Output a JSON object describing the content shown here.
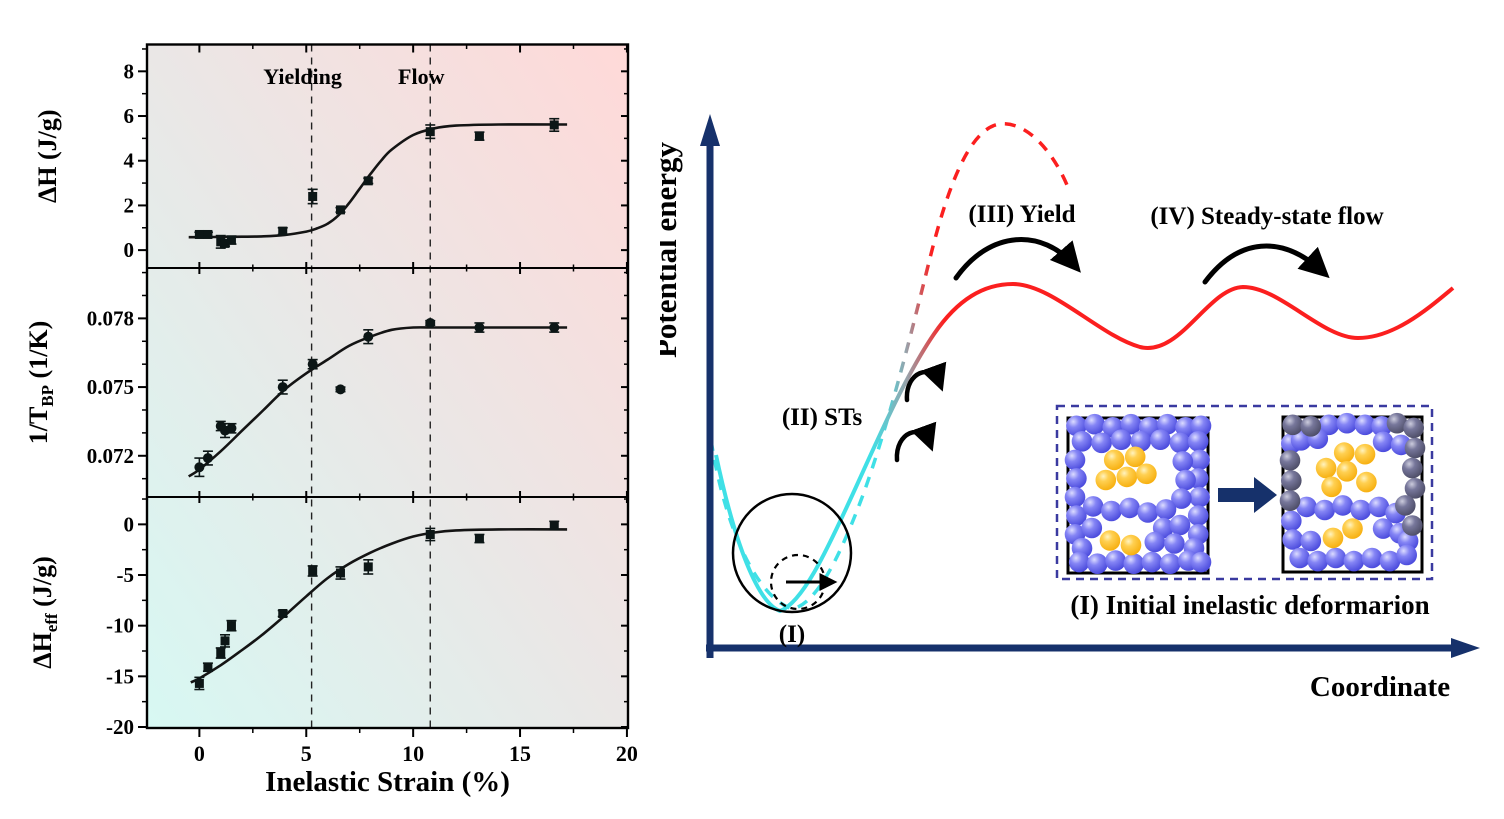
{
  "colors": {
    "plot_gradient_start": "#d7f8f3",
    "plot_gradient_mid": "#eae7e6",
    "plot_gradient_end": "#ffd9d8",
    "marker": "#0c1616",
    "curve": "#141414",
    "axis_black": "#000000",
    "navy": "#16316b",
    "red": "#fb1f1f",
    "cyan": "#3fe0e6",
    "grey_transition": "#9aa0a8",
    "vline": "#222222",
    "inset_border": "#3a3aa0",
    "blue_particle": "#5b5bed",
    "dark_particle": "#585880",
    "yellow_particle": "#ffb822"
  },
  "chart_data": {
    "type": "line",
    "xlabel": "Inelastic Strain (%)",
    "xlim": [
      -2.45,
      20.05
    ],
    "xticks": [
      0,
      5,
      10,
      15,
      20
    ],
    "x_minor_step": 2.5,
    "vlines": [
      {
        "x": 5.25,
        "label": "Yielding"
      },
      {
        "x": 10.8,
        "label": "Flow"
      }
    ],
    "points_x": [
      0,
      0.4,
      1.0,
      1.2,
      1.5,
      3.9,
      5.3,
      6.6,
      7.9,
      10.8,
      13.1,
      16.6
    ],
    "panels": [
      {
        "ylabel": {
          "pre": "ΔH",
          "sub": "",
          "post": " (J/g)"
        },
        "ylim": [
          -0.8,
          9.2
        ],
        "yticks": [
          0,
          2,
          4,
          6,
          8
        ],
        "ytick_labels": [
          "0",
          "2",
          "4",
          "6",
          "8"
        ],
        "y_minor_step": 1,
        "marker": "square",
        "points_y": [
          0.7,
          0.7,
          0.37,
          0.3,
          0.45,
          0.85,
          2.4,
          1.8,
          3.1,
          5.3,
          5.1,
          5.6
        ],
        "points_err": [
          0.1,
          0.1,
          0.28,
          0.12,
          0.18,
          0.15,
          0.32,
          0.1,
          0.12,
          0.3,
          0.18,
          0.28
        ],
        "fit_curve": {
          "x": [
            -0.5,
            0,
            1,
            2,
            3,
            4,
            5,
            5.5,
            6,
            6.5,
            7,
            7.5,
            8,
            8.5,
            9,
            10,
            11,
            12,
            14,
            17.2
          ],
          "y": [
            0.58,
            0.58,
            0.59,
            0.6,
            0.62,
            0.68,
            0.83,
            0.97,
            1.18,
            1.55,
            2.1,
            2.75,
            3.4,
            4.0,
            4.5,
            5.15,
            5.45,
            5.57,
            5.62,
            5.62
          ]
        }
      },
      {
        "ylabel": {
          "pre": "1/T",
          "sub": "BP",
          "post": " (1/K)"
        },
        "ylim": [
          0.0702,
          0.0802
        ],
        "yticks": [
          0.072,
          0.075,
          0.078
        ],
        "ytick_labels": [
          "0.072",
          "0.075",
          "0.078"
        ],
        "y_minor_step": 0.001,
        "marker": "circle",
        "points_y": [
          0.0715,
          0.0719,
          0.0733,
          0.0731,
          0.0732,
          0.075,
          0.076,
          0.0749,
          0.0772,
          0.0778,
          0.0776,
          0.0776
        ],
        "points_err": [
          0.0004,
          0.0003,
          0.0002,
          0.0003,
          0.0002,
          0.0003,
          0.0002,
          0.0001,
          0.0003,
          0.0001,
          0.0002,
          0.0002
        ],
        "fit_curve": {
          "x": [
            -0.5,
            0,
            1,
            2,
            3,
            4,
            5,
            6,
            7,
            8,
            9,
            10,
            11,
            12,
            14,
            17.2
          ],
          "y": [
            0.0711,
            0.0714,
            0.0722,
            0.0731,
            0.074,
            0.0749,
            0.0756,
            0.0762,
            0.0768,
            0.0772,
            0.0775,
            0.0776,
            0.0776,
            0.0776,
            0.0776,
            0.0776
          ]
        }
      },
      {
        "ylabel": {
          "pre": "ΔH",
          "sub": "eff",
          "post": " (J/g)"
        },
        "ylim": [
          -20.1,
          2.7
        ],
        "yticks": [
          0,
          -5,
          -10,
          -15,
          -20
        ],
        "ytick_labels": [
          "0",
          "-5",
          "-10",
          "-15",
          "-20"
        ],
        "y_minor_step": 2.5,
        "marker": "square",
        "points_y": [
          -15.7,
          -14.1,
          -12.7,
          -11.5,
          -10.0,
          -8.8,
          -4.6,
          -4.8,
          -4.2,
          -1.0,
          -1.4,
          -0.1
        ],
        "points_err": [
          0.6,
          0.4,
          0.5,
          0.6,
          0.5,
          0.3,
          0.5,
          0.6,
          0.7,
          0.6,
          0.4,
          0.4
        ],
        "fit_curve": {
          "x": [
            -0.4,
            0,
            1,
            2,
            3,
            4,
            5,
            6,
            7,
            8,
            9,
            10,
            11,
            12,
            14,
            17.2
          ],
          "y": [
            -15.6,
            -15.2,
            -13.9,
            -12.4,
            -10.8,
            -9.0,
            -7.1,
            -5.3,
            -3.9,
            -2.8,
            -1.9,
            -1.2,
            -0.8,
            -0.6,
            -0.5,
            -0.5
          ]
        }
      }
    ]
  },
  "diagram": {
    "y_axis_label": "Potential energy",
    "x_axis_label": "Coordinate",
    "stage1_label": "(I)",
    "stage2_label": "(II) STs",
    "stage3_label": "(III) Yield",
    "stage4_label": "(IV) Steady-state flow",
    "inset": {
      "caption": "(I) Initial inelastic deformarion",
      "boxes": [
        {
          "blue": [
            [
              0.06,
              0.05
            ],
            [
              0.19,
              0.04
            ],
            [
              0.32,
              0.06
            ],
            [
              0.45,
              0.04
            ],
            [
              0.58,
              0.06
            ],
            [
              0.71,
              0.04
            ],
            [
              0.84,
              0.06
            ],
            [
              0.95,
              0.05
            ],
            [
              0.1,
              0.15
            ],
            [
              0.24,
              0.16
            ],
            [
              0.38,
              0.14
            ],
            [
              0.52,
              0.15
            ],
            [
              0.66,
              0.14
            ],
            [
              0.8,
              0.16
            ],
            [
              0.93,
              0.15
            ],
            [
              0.05,
              0.27
            ],
            [
              0.06,
              0.39
            ],
            [
              0.05,
              0.51
            ],
            [
              0.06,
              0.63
            ],
            [
              0.94,
              0.27
            ],
            [
              0.93,
              0.39
            ],
            [
              0.94,
              0.51
            ],
            [
              0.93,
              0.63
            ],
            [
              0.82,
              0.28
            ],
            [
              0.84,
              0.4
            ],
            [
              0.81,
              0.52
            ],
            [
              0.18,
              0.57
            ],
            [
              0.31,
              0.6
            ],
            [
              0.44,
              0.58
            ],
            [
              0.57,
              0.61
            ],
            [
              0.7,
              0.59
            ],
            [
              0.05,
              0.75
            ],
            [
              0.17,
              0.71
            ],
            [
              0.68,
              0.71
            ],
            [
              0.8,
              0.69
            ],
            [
              0.93,
              0.75
            ],
            [
              0.1,
              0.84
            ],
            [
              0.62,
              0.8
            ],
            [
              0.76,
              0.81
            ],
            [
              0.9,
              0.84
            ],
            [
              0.08,
              0.93
            ],
            [
              0.21,
              0.94
            ],
            [
              0.34,
              0.92
            ],
            [
              0.47,
              0.94
            ],
            [
              0.6,
              0.93
            ],
            [
              0.73,
              0.94
            ],
            [
              0.86,
              0.92
            ],
            [
              0.95,
              0.93
            ]
          ],
          "dark": [],
          "yellow": [
            [
              0.33,
              0.27
            ],
            [
              0.48,
              0.25
            ],
            [
              0.27,
              0.4
            ],
            [
              0.42,
              0.38
            ],
            [
              0.56,
              0.36
            ],
            [
              0.3,
              0.79
            ],
            [
              0.45,
              0.82
            ]
          ]
        },
        {
          "blue": [
            [
              0.33,
              0.05
            ],
            [
              0.46,
              0.04
            ],
            [
              0.59,
              0.05
            ],
            [
              0.71,
              0.06
            ],
            [
              0.06,
              0.17
            ],
            [
              0.13,
              0.15
            ],
            [
              0.25,
              0.14
            ],
            [
              0.72,
              0.16
            ],
            [
              0.85,
              0.18
            ],
            [
              0.17,
              0.58
            ],
            [
              0.3,
              0.6
            ],
            [
              0.43,
              0.57
            ],
            [
              0.56,
              0.6
            ],
            [
              0.69,
              0.58
            ],
            [
              0.81,
              0.62
            ],
            [
              0.06,
              0.67
            ],
            [
              0.07,
              0.79
            ],
            [
              0.2,
              0.8
            ],
            [
              0.72,
              0.72
            ],
            [
              0.84,
              0.75
            ],
            [
              0.9,
              0.8
            ],
            [
              0.12,
              0.91
            ],
            [
              0.25,
              0.93
            ],
            [
              0.38,
              0.91
            ],
            [
              0.51,
              0.93
            ],
            [
              0.64,
              0.91
            ],
            [
              0.77,
              0.93
            ],
            [
              0.89,
              0.89
            ]
          ],
          "dark": [
            [
              0.07,
              0.05
            ],
            [
              0.2,
              0.06
            ],
            [
              0.82,
              0.04
            ],
            [
              0.94,
              0.07
            ],
            [
              0.95,
              0.2
            ],
            [
              0.93,
              0.33
            ],
            [
              0.95,
              0.46
            ],
            [
              0.88,
              0.57
            ],
            [
              0.05,
              0.28
            ],
            [
              0.06,
              0.41
            ],
            [
              0.05,
              0.54
            ],
            [
              0.93,
              0.7
            ]
          ],
          "yellow": [
            [
              0.44,
              0.23
            ],
            [
              0.59,
              0.24
            ],
            [
              0.31,
              0.33
            ],
            [
              0.46,
              0.35
            ],
            [
              0.6,
              0.42
            ],
            [
              0.35,
              0.45
            ],
            [
              0.5,
              0.72
            ],
            [
              0.36,
              0.78
            ]
          ]
        }
      ]
    }
  }
}
